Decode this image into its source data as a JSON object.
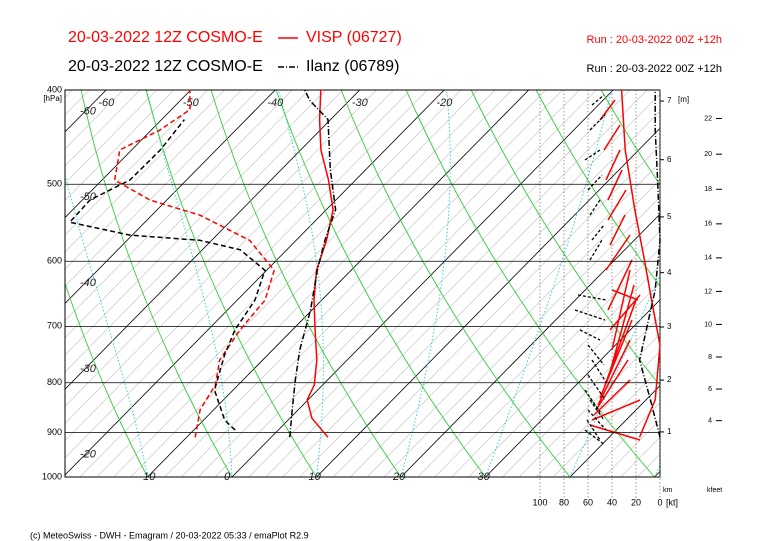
{
  "chart_data": {
    "type": "emagram",
    "legend": [
      {
        "model": "20-03-2022 12Z COSMO-E",
        "station": "VISP (06727)",
        "run": "Run : 20-03-2022 00Z +12h",
        "color": "#ff0000",
        "style": "solid"
      },
      {
        "model": "20-03-2022 12Z COSMO-E",
        "station": "Ilanz (06789)",
        "run": "Run : 20-03-2022 00Z +12h",
        "color": "#000000",
        "style": "dashdot"
      }
    ],
    "ylabel": "[hPa]",
    "ylim": [
      400,
      1000
    ],
    "yticks": [
      400,
      500,
      600,
      700,
      800,
      900,
      1000
    ],
    "isotherms": [
      -60,
      -50,
      -40,
      -30,
      -20,
      -10,
      0,
      10,
      20,
      30
    ],
    "height_axis": {
      "label": "[m]",
      "bottom_label": "km",
      "ticks": [
        1,
        2,
        3,
        4,
        5,
        6,
        7
      ]
    },
    "kfeet_axis": {
      "label": "kfeet",
      "ticks": [
        4,
        6,
        8,
        10,
        12,
        14,
        16,
        18,
        20,
        22
      ]
    },
    "wind_axis": {
      "label": "[kt]",
      "ticks": [
        100,
        80,
        60,
        40,
        20,
        0
      ]
    },
    "series": [
      {
        "kind": "temperature",
        "color": "#ff0000",
        "style": "solid",
        "pressure": [
          910,
          870,
          833,
          804,
          758,
          706,
          658,
          613,
          571,
          531,
          495,
          461,
          429,
          400
        ],
        "values": [
          6.7,
          2.6,
          -0.1,
          -1.0,
          -3.6,
          -7.3,
          -10.9,
          -14.1,
          -16.4,
          -19.2,
          -23.2,
          -27.6,
          -31.3,
          -34.6
        ]
      },
      {
        "kind": "dewpoint",
        "color": "#ff0000",
        "style": "dashed",
        "pressure": [
          910,
          853,
          804,
          758,
          706,
          658,
          613,
          571,
          538,
          519,
          495,
          461,
          440,
          419,
          400
        ],
        "values": [
          -9.0,
          -11.6,
          -12.7,
          -15.1,
          -16.2,
          -16.7,
          -19.1,
          -25.5,
          -34.3,
          -42.0,
          -48.5,
          -51.4,
          -49.0,
          -47.8,
          -50.1
        ]
      },
      {
        "kind": "temperature",
        "color": "#000000",
        "style": "dashdot",
        "pressure": [
          910,
          853,
          795,
          740,
          673,
          613,
          571,
          531,
          483,
          429,
          410,
          400
        ],
        "values": [
          2.2,
          -0.7,
          -3.8,
          -6.8,
          -10.2,
          -14.0,
          -16.6,
          -18.9,
          -24.2,
          -30.3,
          -34.7,
          -36.5
        ]
      },
      {
        "kind": "dewpoint",
        "color": "#000000",
        "style": "dashed",
        "pressure": [
          895,
          874,
          814,
          749,
          706,
          658,
          613,
          584,
          571,
          564,
          547,
          519,
          495,
          461,
          429
        ],
        "values": [
          -5.1,
          -7.5,
          -12.2,
          -15.1,
          -16.8,
          -17.9,
          -20.2,
          -25.5,
          -31.4,
          -40.3,
          -48.9,
          -49.1,
          -46.7,
          -46.6,
          -47.3
        ]
      },
      {
        "kind": "wind_speed",
        "color": "#ff0000",
        "style": "solid",
        "pressure": [
          910,
          833,
          732,
          658,
          598,
          531,
          461,
          400
        ],
        "values": [
          17,
          4,
          0,
          7,
          13,
          21,
          29,
          32
        ]
      },
      {
        "kind": "wind_speed",
        "color": "#000000",
        "style": "dashdot",
        "pressure": [
          910,
          833,
          758,
          642,
          571,
          495,
          440,
          400
        ],
        "values": [
          0,
          8,
          17,
          4,
          0,
          2,
          4,
          4
        ]
      }
    ],
    "footer": "(c) MeteoSwiss - DWH - Emagram / 20-03-2022 05:33 / emaPlot R2.9"
  }
}
